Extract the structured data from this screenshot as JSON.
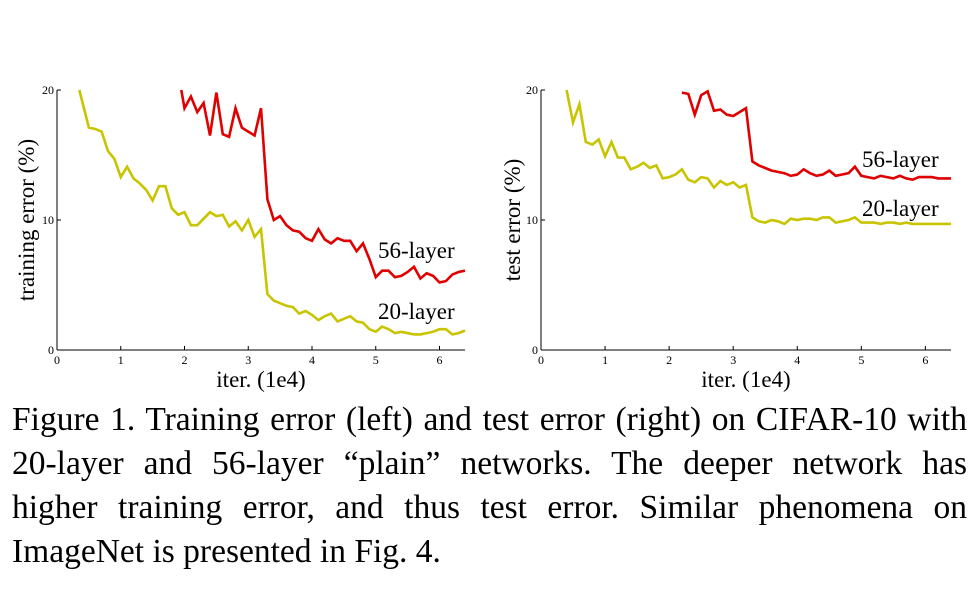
{
  "caption": "Figure 1. Training error (left) and test error (right) on CIFAR-10 with 20-layer and 56-layer “plain” networks. The deeper network has higher training error, and thus test error. Similar phenomena on ImageNet is presented in Fig. 4.",
  "chart_data": [
    {
      "type": "line",
      "title": "",
      "xlabel": "iter. (1e4)",
      "ylabel": "training error (%)",
      "xlim": [
        0,
        6.4
      ],
      "ylim": [
        0,
        20
      ],
      "xticks": [
        "0",
        "1",
        "2",
        "3",
        "4",
        "5",
        "6"
      ],
      "yticks": [
        "0",
        "10",
        "20"
      ],
      "grid": false,
      "legend": "inline labels at right of each line",
      "series": [
        {
          "name": "56-layer",
          "color": "#e00000",
          "x": [
            1.95,
            2.0,
            2.1,
            2.2,
            2.3,
            2.4,
            2.5,
            2.6,
            2.7,
            2.8,
            2.9,
            3.0,
            3.1,
            3.2,
            3.3,
            3.4,
            3.5,
            3.6,
            3.7,
            3.8,
            3.9,
            4.0,
            4.1,
            4.2,
            4.3,
            4.4,
            4.5,
            4.6,
            4.7,
            4.8,
            4.9,
            5.0,
            5.1,
            5.2,
            5.3,
            5.4,
            5.5,
            5.6,
            5.7,
            5.8,
            5.9,
            6.0,
            6.1,
            6.2,
            6.3,
            6.4
          ],
          "y": [
            20.0,
            18.6,
            19.5,
            18.3,
            19.0,
            16.5,
            19.8,
            16.6,
            16.4,
            18.6,
            17.1,
            16.8,
            16.5,
            18.6,
            11.6,
            10.0,
            10.3,
            9.6,
            9.2,
            9.1,
            8.6,
            8.4,
            9.3,
            8.5,
            8.2,
            8.6,
            8.4,
            8.4,
            7.6,
            8.2,
            7.0,
            5.6,
            6.1,
            6.1,
            5.6,
            5.7,
            6.0,
            6.4,
            5.5,
            5.9,
            5.7,
            5.2,
            5.3,
            5.8,
            6.0,
            6.1
          ]
        },
        {
          "name": "20-layer",
          "color": "#c8c400",
          "x": [
            0.35,
            0.5,
            0.6,
            0.7,
            0.8,
            0.9,
            1.0,
            1.1,
            1.2,
            1.3,
            1.4,
            1.5,
            1.6,
            1.7,
            1.8,
            1.9,
            2.0,
            2.1,
            2.2,
            2.3,
            2.4,
            2.5,
            2.6,
            2.7,
            2.8,
            2.9,
            3.0,
            3.1,
            3.2,
            3.3,
            3.4,
            3.5,
            3.6,
            3.7,
            3.8,
            3.9,
            4.0,
            4.1,
            4.2,
            4.3,
            4.4,
            4.5,
            4.6,
            4.7,
            4.8,
            4.9,
            5.0,
            5.1,
            5.2,
            5.3,
            5.4,
            5.5,
            5.6,
            5.7,
            5.8,
            5.9,
            6.0,
            6.1,
            6.2,
            6.3,
            6.4
          ],
          "y": [
            20.0,
            17.1,
            17.0,
            16.8,
            15.3,
            14.7,
            13.3,
            14.1,
            13.2,
            12.8,
            12.3,
            11.5,
            12.6,
            12.6,
            10.9,
            10.4,
            10.6,
            9.6,
            9.6,
            10.1,
            10.6,
            10.3,
            10.4,
            9.5,
            9.9,
            9.2,
            10.0,
            8.7,
            9.3,
            4.3,
            3.8,
            3.6,
            3.4,
            3.3,
            2.8,
            3.0,
            2.7,
            2.3,
            2.6,
            2.8,
            2.2,
            2.4,
            2.6,
            2.2,
            2.1,
            1.6,
            1.4,
            1.8,
            1.6,
            1.3,
            1.4,
            1.3,
            1.2,
            1.2,
            1.3,
            1.4,
            1.6,
            1.6,
            1.2,
            1.3,
            1.5
          ]
        }
      ]
    },
    {
      "type": "line",
      "title": "",
      "xlabel": "iter. (1e4)",
      "ylabel": "test error (%)",
      "xlim": [
        0,
        6.4
      ],
      "ylim": [
        0,
        20
      ],
      "xticks": [
        "0",
        "1",
        "2",
        "3",
        "4",
        "5",
        "6"
      ],
      "yticks": [
        "0",
        "10",
        "20"
      ],
      "grid": false,
      "legend": "inline labels at right of each line",
      "series": [
        {
          "name": "56-layer",
          "color": "#e00000",
          "x": [
            2.2,
            2.3,
            2.4,
            2.5,
            2.6,
            2.7,
            2.8,
            2.9,
            3.0,
            3.1,
            3.2,
            3.3,
            3.4,
            3.5,
            3.6,
            3.7,
            3.8,
            3.9,
            4.0,
            4.1,
            4.2,
            4.3,
            4.4,
            4.5,
            4.6,
            4.7,
            4.8,
            4.9,
            5.0,
            5.1,
            5.2,
            5.3,
            5.4,
            5.5,
            5.6,
            5.7,
            5.8,
            5.9,
            6.0,
            6.1,
            6.2,
            6.3,
            6.4
          ],
          "y": [
            19.8,
            19.7,
            18.1,
            19.6,
            19.9,
            18.4,
            18.5,
            18.1,
            18.0,
            18.3,
            18.6,
            14.5,
            14.2,
            14.0,
            13.8,
            13.7,
            13.6,
            13.4,
            13.5,
            13.9,
            13.6,
            13.4,
            13.5,
            13.8,
            13.4,
            13.5,
            13.6,
            14.1,
            13.4,
            13.3,
            13.2,
            13.4,
            13.3,
            13.2,
            13.4,
            13.2,
            13.1,
            13.3,
            13.3,
            13.3,
            13.2,
            13.2,
            13.2
          ]
        },
        {
          "name": "20-layer",
          "color": "#c8c400",
          "x": [
            0.4,
            0.5,
            0.6,
            0.7,
            0.8,
            0.9,
            1.0,
            1.1,
            1.2,
            1.3,
            1.4,
            1.5,
            1.6,
            1.7,
            1.8,
            1.9,
            2.0,
            2.1,
            2.2,
            2.3,
            2.4,
            2.5,
            2.6,
            2.7,
            2.8,
            2.9,
            3.0,
            3.1,
            3.2,
            3.3,
            3.4,
            3.5,
            3.6,
            3.7,
            3.8,
            3.9,
            4.0,
            4.1,
            4.2,
            4.3,
            4.4,
            4.5,
            4.6,
            4.7,
            4.8,
            4.9,
            5.0,
            5.1,
            5.2,
            5.3,
            5.4,
            5.5,
            5.6,
            5.7,
            5.8,
            5.9,
            6.0,
            6.1,
            6.2,
            6.3,
            6.4
          ],
          "y": [
            20.0,
            17.5,
            18.9,
            16.0,
            15.8,
            16.2,
            14.9,
            16.0,
            14.8,
            14.8,
            13.9,
            14.1,
            14.4,
            14.0,
            14.2,
            13.2,
            13.3,
            13.5,
            13.9,
            13.1,
            12.9,
            13.3,
            13.2,
            12.5,
            13.0,
            12.7,
            12.9,
            12.5,
            12.7,
            10.2,
            9.9,
            9.8,
            10.0,
            9.9,
            9.7,
            10.1,
            10.0,
            10.1,
            10.1,
            10.0,
            10.2,
            10.2,
            9.8,
            9.9,
            10.0,
            10.2,
            9.8,
            9.8,
            9.8,
            9.7,
            9.8,
            9.8,
            9.7,
            9.8,
            9.7,
            9.7,
            9.7,
            9.7,
            9.7,
            9.7,
            9.7
          ]
        }
      ]
    }
  ]
}
